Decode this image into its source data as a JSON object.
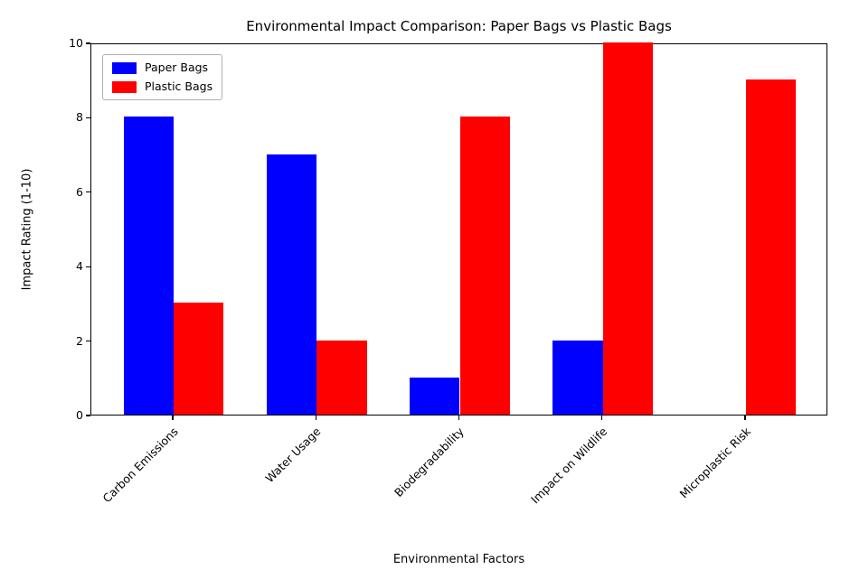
{
  "chart_data": {
    "type": "bar",
    "title": "Environmental Impact Comparison: Paper Bags vs Plastic Bags",
    "xlabel": "Environmental Factors",
    "ylabel": "Impact Rating (1-10)",
    "categories": [
      "Carbon Emissions",
      "Water Usage",
      "Biodegradability",
      "Impact on Wildlife",
      "Microplastic Risk"
    ],
    "series": [
      {
        "name": "Paper Bags",
        "color": "#0000ff",
        "values": [
          8,
          7,
          1,
          2,
          0
        ]
      },
      {
        "name": "Plastic Bags",
        "color": "#ff0000",
        "values": [
          3,
          2,
          8,
          10,
          9
        ]
      }
    ],
    "ylim": [
      0,
      10
    ],
    "yticks": [
      0,
      2,
      4,
      6,
      8,
      10
    ],
    "bar_width_fraction": 0.35,
    "legend_position": "upper left",
    "grid": false
  }
}
